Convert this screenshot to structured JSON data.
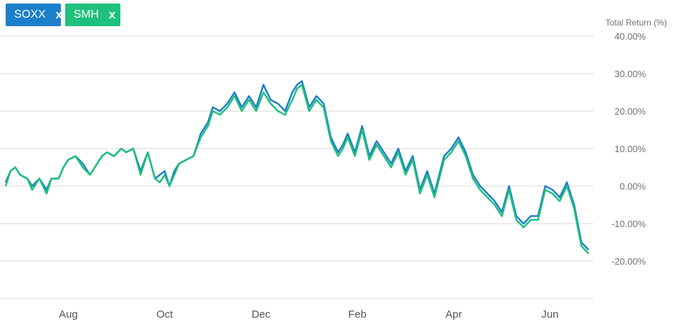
{
  "legend": {
    "items": [
      {
        "label": "SOXX",
        "close": "x",
        "color": "#1c7fcb"
      },
      {
        "label": "SMH",
        "close": "x",
        "color": "#1fc07d"
      }
    ]
  },
  "chart_data": {
    "type": "line",
    "ylabel": "Total Return (%)",
    "ylim": [
      -25,
      40
    ],
    "y_ticks": [
      {
        "value": 40,
        "label": "40.00%"
      },
      {
        "value": 30,
        "label": "30.00%"
      },
      {
        "value": 20,
        "label": "20.00%"
      },
      {
        "value": 10,
        "label": "10.00%"
      },
      {
        "value": 0,
        "label": "0.00%"
      },
      {
        "value": -10,
        "label": "-10.00%"
      },
      {
        "value": -20,
        "label": "-20.00%"
      }
    ],
    "x_range": [
      0,
      12.2
    ],
    "x_ticks": [
      {
        "value": 1.3,
        "label": "Aug"
      },
      {
        "value": 3.3,
        "label": "Oct"
      },
      {
        "value": 5.3,
        "label": "Dec"
      },
      {
        "value": 7.3,
        "label": "Feb"
      },
      {
        "value": 9.3,
        "label": "Apr"
      },
      {
        "value": 11.3,
        "label": "Jun"
      }
    ],
    "grid": true,
    "series": [
      {
        "name": "SOXX",
        "color": "#1c7fcb",
        "x": [
          0,
          0.1,
          0.2,
          0.3,
          0.45,
          0.55,
          0.7,
          0.85,
          0.95,
          1.1,
          1.2,
          1.3,
          1.45,
          1.6,
          1.75,
          1.9,
          2.0,
          2.1,
          2.25,
          2.4,
          2.5,
          2.65,
          2.8,
          2.95,
          3.1,
          3.2,
          3.3,
          3.4,
          3.5,
          3.6,
          3.75,
          3.9,
          4.05,
          4.2,
          4.3,
          4.45,
          4.6,
          4.75,
          4.9,
          5.05,
          5.2,
          5.35,
          5.5,
          5.65,
          5.8,
          5.95,
          6.05,
          6.15,
          6.3,
          6.45,
          6.6,
          6.75,
          6.9,
          7.0,
          7.1,
          7.25,
          7.4,
          7.55,
          7.7,
          7.85,
          8.0,
          8.15,
          8.3,
          8.45,
          8.6,
          8.75,
          8.9,
          9.0,
          9.1,
          9.25,
          9.4,
          9.55,
          9.7,
          9.85,
          10.0,
          10.15,
          10.3,
          10.45,
          10.6,
          10.75,
          10.9,
          11.05,
          11.2,
          11.35,
          11.5,
          11.65,
          11.8,
          11.95,
          12.1
        ],
        "values": [
          1,
          4,
          5,
          3,
          2,
          0,
          2,
          -1,
          2,
          2,
          5,
          7,
          8,
          6,
          3,
          6,
          8,
          9,
          8,
          10,
          9,
          10,
          4,
          9,
          2,
          3,
          4,
          0,
          4,
          6,
          7,
          8,
          14,
          17,
          21,
          20,
          22,
          25,
          21,
          24,
          21,
          27,
          23,
          22,
          20,
          25,
          27,
          28,
          21,
          24,
          22,
          13,
          9,
          11,
          14,
          9,
          16,
          8,
          12,
          9,
          6,
          10,
          4,
          8,
          -1,
          4,
          -2,
          3,
          8,
          10,
          13,
          9,
          3,
          0,
          -2,
          -4,
          -7,
          0,
          -8,
          -10,
          -8,
          -8,
          0,
          -1,
          -3,
          1,
          -5,
          -15,
          -17
        ],
        "end_value": -17
      },
      {
        "name": "SMH",
        "color": "#1fc07d",
        "x": [
          0,
          0.1,
          0.2,
          0.3,
          0.45,
          0.55,
          0.7,
          0.85,
          0.95,
          1.1,
          1.2,
          1.3,
          1.45,
          1.6,
          1.75,
          1.9,
          2.0,
          2.1,
          2.25,
          2.4,
          2.5,
          2.65,
          2.8,
          2.95,
          3.1,
          3.2,
          3.3,
          3.4,
          3.5,
          3.6,
          3.75,
          3.9,
          4.05,
          4.2,
          4.3,
          4.45,
          4.6,
          4.75,
          4.9,
          5.05,
          5.2,
          5.35,
          5.5,
          5.65,
          5.8,
          5.95,
          6.05,
          6.15,
          6.3,
          6.45,
          6.6,
          6.75,
          6.9,
          7.0,
          7.1,
          7.25,
          7.4,
          7.55,
          7.7,
          7.85,
          8.0,
          8.15,
          8.3,
          8.45,
          8.6,
          8.75,
          8.9,
          9.0,
          9.1,
          9.25,
          9.4,
          9.55,
          9.7,
          9.85,
          10.0,
          10.15,
          10.3,
          10.45,
          10.6,
          10.75,
          10.9,
          11.05,
          11.2,
          11.35,
          11.5,
          11.65,
          11.8,
          11.95,
          12.1
        ],
        "values": [
          0,
          4,
          5,
          3,
          2,
          -1,
          2,
          -2,
          2,
          2,
          5,
          7,
          8,
          5,
          3,
          6,
          8,
          9,
          8,
          10,
          9,
          10,
          3,
          9,
          2,
          1,
          3,
          0,
          3,
          6,
          7,
          8,
          13,
          16,
          20,
          19,
          21,
          24,
          20,
          23,
          20,
          25,
          22,
          20,
          19,
          23,
          26,
          27,
          20,
          23,
          21,
          12,
          8,
          10,
          13,
          8,
          15,
          7,
          11,
          8,
          5,
          9,
          3,
          7,
          -2,
          3,
          -3,
          2,
          7,
          9,
          12,
          8,
          2,
          -1,
          -3,
          -5,
          -8,
          -1,
          -9,
          -11,
          -9,
          -9,
          -1,
          -2,
          -4,
          0,
          -6,
          -16,
          -18
        ],
        "end_value": -18
      }
    ]
  }
}
